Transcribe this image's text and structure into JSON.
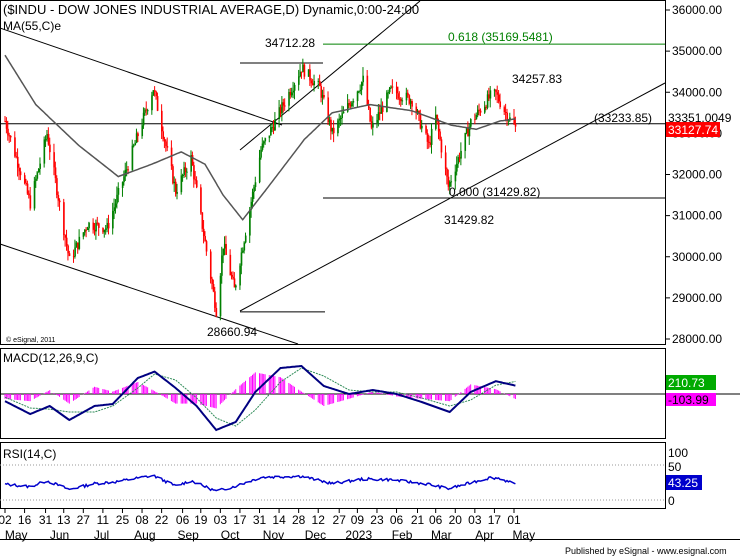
{
  "title": "($INDU - DOW JONES INDUSTRIAL AVERAGE,D) Dynamic,0:00-24:00",
  "ma_label": "MA(55,C)e",
  "watermark": "© eSignal, 2011",
  "footer": "Published by eSignal - www.esignal.com",
  "colors": {
    "up": "#008000",
    "down": "#ff0000",
    "ma": "#000000",
    "fib_line": "#008000",
    "fib_text": "#008000",
    "macd": "#000080",
    "signal": "#2e8b57",
    "hist": "#ff00ff",
    "rsi": "#0000cc",
    "price_tag": "#ff0000",
    "macd_tag": "#00aa00",
    "hist_tag": "#ff00ff",
    "rsi_tag": "#0000cc"
  },
  "annotations": {
    "high": "34712.28",
    "fib618": "0.618 (35169.5481)",
    "recent_high": "34257.83",
    "fib0": "0.000 (31429.82)",
    "low_mar": "31429.82",
    "low_oct": "28660.94",
    "level": "(33233.85)"
  },
  "price_panel": {
    "axis_ticks": [
      "36000.00",
      "35000.00",
      "34000.00",
      "33000.00",
      "32000.00",
      "31000.00",
      "30000.00",
      "29000.00",
      "28000.00"
    ],
    "tag_ma": "33351.0049",
    "tag_last": "33127.74"
  },
  "macd_panel": {
    "label": "MACD(12,26,9,C)",
    "tag_macd": "210.73",
    "tag_hist": "-103.99"
  },
  "rsi_panel": {
    "label": "RSI(14,C)",
    "axis_ticks": [
      "100",
      "50",
      "0"
    ],
    "tag_rsi": "43.25"
  },
  "x_axis": {
    "days": [
      "02",
      "16",
      "31",
      "13",
      "27",
      "11",
      "25",
      "08",
      "22",
      "06",
      "19",
      "03",
      "17",
      "31",
      "14",
      "28",
      "12",
      "27",
      "09",
      "23",
      "06",
      "21",
      "06",
      "20",
      "03",
      "17",
      "01"
    ],
    "months": [
      "May",
      "Jun",
      "Jul",
      "Aug",
      "Sep",
      "Oct",
      "Nov",
      "Dec",
      "2023",
      "Feb",
      "Mar",
      "Apr",
      "May"
    ]
  },
  "chart_data": {
    "type": "candlestick",
    "instrument": "$INDU",
    "indicators": [
      "MA(55,C)e",
      "MACD(12,26,9,C)",
      "RSI(14,C)"
    ],
    "price_axis_range": [
      27800,
      36300
    ],
    "price_anchors": [
      {
        "date": "2022-05-02",
        "close": 33300
      },
      {
        "date": "2022-05-20",
        "close": 31300
      },
      {
        "date": "2022-06-01",
        "close": 33000
      },
      {
        "date": "2022-06-17",
        "close": 29900
      },
      {
        "date": "2022-06-30",
        "close": 30800
      },
      {
        "date": "2022-07-14",
        "close": 30700
      },
      {
        "date": "2022-08-16",
        "close": 34100
      },
      {
        "date": "2022-09-01",
        "close": 31600
      },
      {
        "date": "2022-09-12",
        "close": 32400
      },
      {
        "date": "2022-09-30",
        "close": 28700
      },
      {
        "date": "2022-10-05",
        "close": 30300
      },
      {
        "date": "2022-10-13",
        "close": 29200
      },
      {
        "date": "2022-11-01",
        "close": 32600
      },
      {
        "date": "2022-11-30",
        "close": 34600
      },
      {
        "date": "2022-12-13",
        "close": 34100
      },
      {
        "date": "2022-12-22",
        "close": 33000
      },
      {
        "date": "2023-01-13",
        "close": 34300
      },
      {
        "date": "2023-01-19",
        "close": 33100
      },
      {
        "date": "2023-02-02",
        "close": 34050
      },
      {
        "date": "2023-02-17",
        "close": 33800
      },
      {
        "date": "2023-03-01",
        "close": 32700
      },
      {
        "date": "2023-03-06",
        "close": 33400
      },
      {
        "date": "2023-03-15",
        "close": 31700
      },
      {
        "date": "2023-03-31",
        "close": 33270
      },
      {
        "date": "2023-04-14",
        "close": 33900
      },
      {
        "date": "2023-04-18",
        "close": 33950
      },
      {
        "date": "2023-04-25",
        "close": 33500
      },
      {
        "date": "2023-05-02",
        "close": 33127.74
      }
    ],
    "ma_anchors": [
      {
        "date": "2022-05-02",
        "value": 34900
      },
      {
        "date": "2022-05-24",
        "value": 33700
      },
      {
        "date": "2022-06-24",
        "value": 32700
      },
      {
        "date": "2022-07-22",
        "value": 31950
      },
      {
        "date": "2022-08-15",
        "value": 32250
      },
      {
        "date": "2022-09-05",
        "value": 32550
      },
      {
        "date": "2022-09-22",
        "value": 32250
      },
      {
        "date": "2022-10-05",
        "value": 31500
      },
      {
        "date": "2022-10-19",
        "value": 30900
      },
      {
        "date": "2022-11-04",
        "value": 31600
      },
      {
        "date": "2022-12-02",
        "value": 32850
      },
      {
        "date": "2022-12-22",
        "value": 33500
      },
      {
        "date": "2023-01-18",
        "value": 33700
      },
      {
        "date": "2023-02-17",
        "value": 33550
      },
      {
        "date": "2023-03-17",
        "value": 33200
      },
      {
        "date": "2023-04-04",
        "value": 33100
      },
      {
        "date": "2023-04-21",
        "value": 33300
      },
      {
        "date": "2023-05-02",
        "value": 33351.0049
      }
    ],
    "horizontal_levels": [
      {
        "label": "0.618",
        "value": 35169.5481
      },
      {
        "label": "0.000",
        "value": 31429.82
      },
      {
        "label": "33233.85",
        "value": 33233.85
      }
    ],
    "swing_points": [
      {
        "label": "34712.28",
        "value": 34712.28,
        "date": "2022-11-30"
      },
      {
        "label": "34257.83",
        "value": 34257.83,
        "date": "2023-04-20"
      },
      {
        "label": "31429.82",
        "value": 31429.82,
        "date": "2023-03-15"
      },
      {
        "label": "28660.94",
        "value": 28660.94,
        "date": "2022-09-30"
      }
    ],
    "macd_range": [
      -1100,
      900
    ],
    "macd_anchors": [
      {
        "date": "2022-05-02",
        "macd": -180,
        "signal": -80
      },
      {
        "date": "2022-05-20",
        "macd": -500,
        "signal": -350
      },
      {
        "date": "2022-06-03",
        "macd": -300,
        "signal": -380
      },
      {
        "date": "2022-06-17",
        "macd": -650,
        "signal": -450
      },
      {
        "date": "2022-07-05",
        "macd": -300,
        "signal": -450
      },
      {
        "date": "2022-07-18",
        "macd": -250,
        "signal": -300
      },
      {
        "date": "2022-08-05",
        "macd": 400,
        "signal": 150
      },
      {
        "date": "2022-08-17",
        "macd": 560,
        "signal": 500
      },
      {
        "date": "2022-09-01",
        "macd": 150,
        "signal": 350
      },
      {
        "date": "2022-09-16",
        "macd": -300,
        "signal": -100
      },
      {
        "date": "2022-09-30",
        "macd": -900,
        "signal": -600
      },
      {
        "date": "2022-10-14",
        "macd": -700,
        "signal": -800
      },
      {
        "date": "2022-10-28",
        "macd": 50,
        "signal": -400
      },
      {
        "date": "2022-11-15",
        "macd": 650,
        "signal": 300
      },
      {
        "date": "2022-11-30",
        "macd": 700,
        "signal": 650
      },
      {
        "date": "2022-12-16",
        "macd": 200,
        "signal": 450
      },
      {
        "date": "2023-01-03",
        "macd": 0,
        "signal": 100
      },
      {
        "date": "2023-01-20",
        "macd": 100,
        "signal": 50
      },
      {
        "date": "2023-02-06",
        "macd": 0,
        "signal": 50
      },
      {
        "date": "2023-02-24",
        "macd": -200,
        "signal": -100
      },
      {
        "date": "2023-03-16",
        "macd": -450,
        "signal": -300
      },
      {
        "date": "2023-03-31",
        "macd": 50,
        "signal": -150
      },
      {
        "date": "2023-04-18",
        "macd": 320,
        "signal": 220
      },
      {
        "date": "2023-05-02",
        "macd": 210.73,
        "signal": 314.72
      }
    ],
    "rsi_range": [
      0,
      100
    ],
    "rsi_anchors": [
      {
        "date": "2022-05-02",
        "value": 45
      },
      {
        "date": "2022-05-20",
        "value": 38
      },
      {
        "date": "2022-06-01",
        "value": 55
      },
      {
        "date": "2022-06-17",
        "value": 30
      },
      {
        "date": "2022-07-05",
        "value": 47
      },
      {
        "date": "2022-07-20",
        "value": 52
      },
      {
        "date": "2022-08-16",
        "value": 70
      },
      {
        "date": "2022-09-01",
        "value": 40
      },
      {
        "date": "2022-09-12",
        "value": 55
      },
      {
        "date": "2022-09-30",
        "value": 25
      },
      {
        "date": "2022-10-14",
        "value": 40
      },
      {
        "date": "2022-11-01",
        "value": 65
      },
      {
        "date": "2022-11-30",
        "value": 68
      },
      {
        "date": "2022-12-22",
        "value": 47
      },
      {
        "date": "2023-01-13",
        "value": 60
      },
      {
        "date": "2023-02-02",
        "value": 58
      },
      {
        "date": "2023-03-01",
        "value": 45
      },
      {
        "date": "2023-03-15",
        "value": 32
      },
      {
        "date": "2023-04-14",
        "value": 64
      },
      {
        "date": "2023-04-21",
        "value": 62
      },
      {
        "date": "2023-05-02",
        "value": 43.25
      }
    ]
  }
}
